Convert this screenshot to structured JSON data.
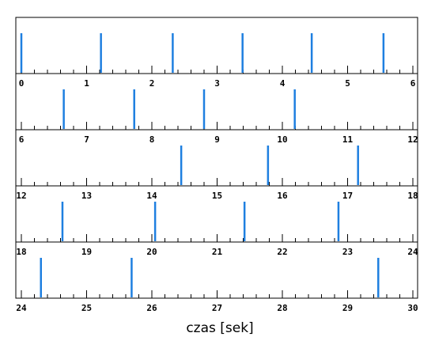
{
  "chart_data": {
    "type": "raster",
    "xlabel": "czas [sek]",
    "panel_seconds": 6,
    "panels": [
      {
        "xlim": [
          0,
          6
        ],
        "tick_labels": [
          "0",
          "1",
          "2",
          "3",
          "4",
          "5",
          "6"
        ],
        "events": [
          0.0,
          1.22,
          2.32,
          3.39,
          4.45,
          5.55
        ]
      },
      {
        "xlim": [
          6,
          12
        ],
        "tick_labels": [
          "6",
          "7",
          "8",
          "9",
          "10",
          "11",
          "12"
        ],
        "events": [
          6.65,
          7.73,
          8.8,
          10.19
        ]
      },
      {
        "xlim": [
          12,
          18
        ],
        "tick_labels": [
          "12",
          "13",
          "14",
          "15",
          "16",
          "17",
          "18"
        ],
        "events": [
          14.45,
          15.78,
          17.16
        ]
      },
      {
        "xlim": [
          18,
          24
        ],
        "tick_labels": [
          "18",
          "19",
          "20",
          "21",
          "22",
          "23",
          "24"
        ],
        "events": [
          18.63,
          20.05,
          21.42,
          22.86
        ]
      },
      {
        "xlim": [
          24,
          30
        ],
        "tick_labels": [
          "24",
          "25",
          "26",
          "27",
          "28",
          "29",
          "30"
        ],
        "events": [
          24.3,
          25.69,
          29.47
        ]
      }
    ],
    "event_color": "#1e7fe0",
    "minor_ticks_per_unit": 5,
    "grid": false
  }
}
